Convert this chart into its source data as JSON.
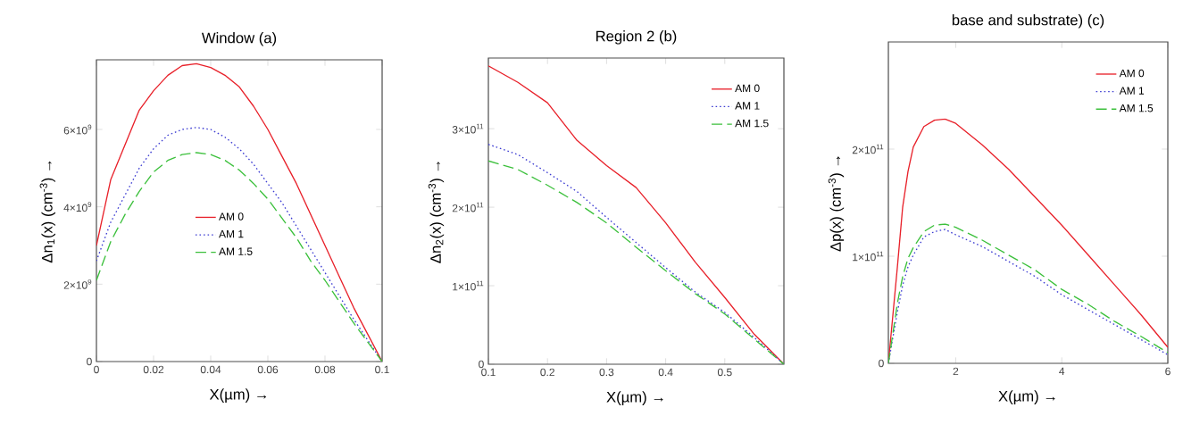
{
  "chart_data": [
    {
      "type": "line",
      "title": "Window (a)",
      "xlabel": "X(µm) →",
      "ylabel": "Δn$_{1}$(x) (cm$^{-3}$) →",
      "x": [
        0,
        0.005,
        0.01,
        0.015,
        0.02,
        0.025,
        0.03,
        0.035,
        0.04,
        0.045,
        0.05,
        0.055,
        0.06,
        0.065,
        0.07,
        0.075,
        0.08,
        0.085,
        0.09,
        0.095,
        0.1
      ],
      "series": [
        {
          "name": "AM 0",
          "color": "#e8212a",
          "line_style": "solid",
          "values": [
            3000000000.0,
            4700000000.0,
            5600000000.0,
            6500000000.0,
            7000000000.0,
            7400000000.0,
            7650000000.0,
            7700000000.0,
            7600000000.0,
            7400000000.0,
            7100000000.0,
            6600000000.0,
            6000000000.0,
            5300000000.0,
            4600000000.0,
            3800000000.0,
            3000000000.0,
            2200000000.0,
            1400000000.0,
            700000000.0,
            0
          ]
        },
        {
          "name": "AM 1",
          "color": "#3c3cd2",
          "line_style": "dotted",
          "values": [
            2600000000.0,
            3600000000.0,
            4300000000.0,
            5000000000.0,
            5500000000.0,
            5850000000.0,
            6000000000.0,
            6050000000.0,
            6000000000.0,
            5800000000.0,
            5500000000.0,
            5100000000.0,
            4600000000.0,
            4100000000.0,
            3500000000.0,
            2900000000.0,
            2300000000.0,
            1700000000.0,
            1100000000.0,
            550000000.0,
            0
          ]
        },
        {
          "name": "AM 1.5",
          "color": "#3cc03c",
          "line_style": "dashed",
          "values": [
            2100000000.0,
            3100000000.0,
            3800000000.0,
            4400000000.0,
            4900000000.0,
            5200000000.0,
            5350000000.0,
            5400000000.0,
            5350000000.0,
            5200000000.0,
            4950000000.0,
            4600000000.0,
            4200000000.0,
            3700000000.0,
            3200000000.0,
            2600000000.0,
            2100000000.0,
            1550000000.0,
            1000000000.0,
            500000000.0,
            0
          ]
        }
      ],
      "xlim": [
        0,
        0.1
      ],
      "ylim": [
        0,
        7800000000.0
      ],
      "xticks": [
        0,
        0.02,
        0.04,
        0.06,
        0.08,
        0.1
      ],
      "yticks": [
        0,
        {
          "value": 2000000000.0,
          "label": "2×10$^{9}$"
        },
        {
          "value": 4000000000.0,
          "label": "4×10$^{9}$"
        },
        {
          "value": 6000000000.0,
          "label": "6×10$^{9}$"
        }
      ],
      "legend": "center",
      "grid": false
    },
    {
      "type": "line",
      "title": "Region 2 (b)",
      "xlabel": "X(µm) →",
      "ylabel": "Δn$_{2}$(x) (cm$^{-3}$) →",
      "x": [
        0.1,
        0.15,
        0.2,
        0.25,
        0.3,
        0.35,
        0.4,
        0.45,
        0.5,
        0.55,
        0.6
      ],
      "series": [
        {
          "name": "AM 0",
          "color": "#e8212a",
          "line_style": "solid",
          "values": [
            380000000000.0,
            359000000000.0,
            333000000000.0,
            285000000000.0,
            253000000000.0,
            225000000000.0,
            180000000000.0,
            130000000000.0,
            85000000000.0,
            38000000000.0,
            0
          ]
        },
        {
          "name": "AM 1",
          "color": "#3c3cd2",
          "line_style": "dotted",
          "values": [
            280000000000.0,
            267000000000.0,
            244000000000.0,
            220000000000.0,
            187000000000.0,
            155000000000.0,
            123000000000.0,
            92000000000.0,
            66000000000.0,
            34000000000.0,
            0
          ]
        },
        {
          "name": "AM 1.5",
          "color": "#3cc03c",
          "line_style": "dashed",
          "values": [
            259000000000.0,
            248000000000.0,
            228000000000.0,
            206000000000.0,
            180000000000.0,
            149000000000.0,
            119000000000.0,
            90000000000.0,
            64000000000.0,
            32000000000.0,
            0
          ]
        }
      ],
      "xlim": [
        0.1,
        0.6
      ],
      "ylim": [
        0,
        390000000000.0
      ],
      "xticks": [
        0.1,
        0.2,
        0.3,
        0.4,
        0.5
      ],
      "yticks": [
        0,
        {
          "value": 100000000000.0,
          "label": "1×10$^{11}$"
        },
        {
          "value": 200000000000.0,
          "label": "2×10$^{11}$"
        },
        {
          "value": 300000000000.0,
          "label": "3×10$^{11}$"
        }
      ],
      "legend": "top right",
      "grid": false
    },
    {
      "type": "line",
      "title": "base and substrate) (c)",
      "xlabel": "X(µm) →",
      "ylabel": "Δp(x) (cm$^{-3}$) →",
      "x": [
        0.73,
        0.9,
        1.0,
        1.1,
        1.2,
        1.4,
        1.6,
        1.8,
        2.0,
        2.5,
        3.0,
        3.5,
        4.0,
        4.5,
        5.0,
        5.5,
        6.0
      ],
      "series": [
        {
          "name": "AM 0",
          "color": "#e8212a",
          "line_style": "solid",
          "values": [
            0,
            90000000000.0,
            146000000000.0,
            179000000000.0,
            202000000000.0,
            221000000000.0,
            227000000000.0,
            228000000000.0,
            224000000000.0,
            204000000000.0,
            181000000000.0,
            155000000000.0,
            129000000000.0,
            101000000000.0,
            73000000000.0,
            45000000000.0,
            15000000000.0
          ]
        },
        {
          "name": "AM 1",
          "color": "#3c3cd2",
          "line_style": "dotted",
          "values": [
            0,
            48000000000.0,
            73000000000.0,
            90000000000.0,
            101000000000.0,
            118000000000.0,
            123000000000.0,
            125000000000.0,
            120000000000.0,
            109000000000.0,
            95000000000.0,
            81000000000.0,
            64000000000.0,
            50000000000.0,
            36000000000.0,
            22000000000.0,
            8000000000.0
          ]
        },
        {
          "name": "AM 1.5",
          "color": "#3cc03c",
          "line_style": "dashed",
          "values": [
            0,
            56000000000.0,
            81000000000.0,
            98000000000.0,
            108000000000.0,
            123000000000.0,
            129000000000.0,
            130000000000.0,
            127000000000.0,
            115000000000.0,
            101000000000.0,
            87000000000.0,
            69000000000.0,
            55000000000.0,
            39000000000.0,
            25000000000.0,
            10000000000.0
          ]
        }
      ],
      "xlim": [
        0.73,
        6
      ],
      "ylim": [
        0,
        300000000000.0
      ],
      "xticks": [
        2,
        4,
        6
      ],
      "yticks": [
        0,
        {
          "value": 100000000000.0,
          "label": "1×10$^{11}$"
        },
        {
          "value": 200000000000.0,
          "label": "2×10$^{11}$"
        }
      ],
      "legend": "top right",
      "grid": false
    }
  ]
}
